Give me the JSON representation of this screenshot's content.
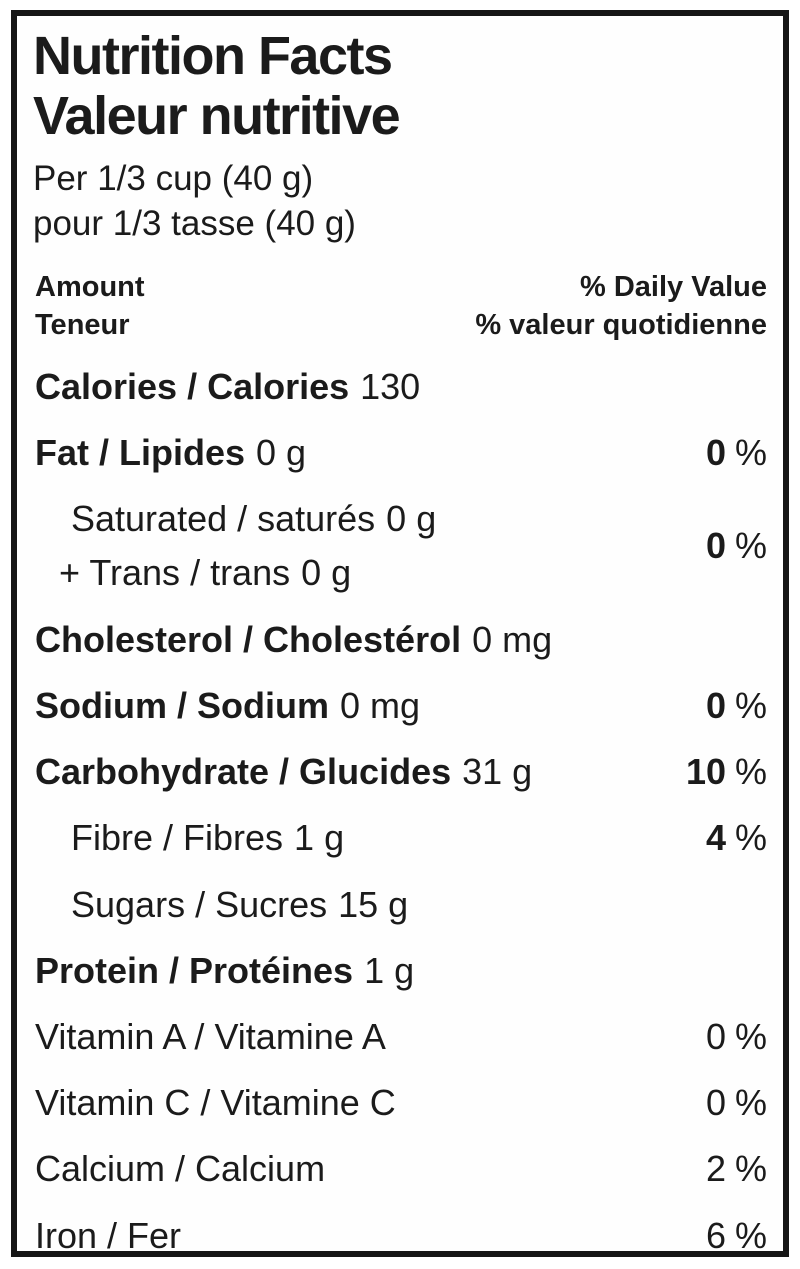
{
  "percent_sign": "%",
  "label": {
    "title_en": "Nutrition Facts",
    "title_fr": "Valeur nutritive",
    "serving_en": "Per 1/3 cup (40 g)",
    "serving_fr": "pour 1/3 tasse (40 g)"
  },
  "header": {
    "amount_en": "Amount",
    "amount_fr": "Teneur",
    "daily_value_en": "% Daily Value",
    "daily_value_fr": "% valeur quotidienne"
  },
  "rows": {
    "calories": {
      "label": "Calories / Calories",
      "value": "130"
    },
    "fat": {
      "label": "Fat / Lipides",
      "value": "0 g",
      "dv": "0"
    },
    "saturated_trans": {
      "label1": "Saturated / saturés",
      "value1": "0 g",
      "label2": "+ Trans / trans",
      "value2": "0 g",
      "dv": "0"
    },
    "cholesterol": {
      "label": "Cholesterol / Cholestérol",
      "value": "0 mg"
    },
    "sodium": {
      "label": "Sodium / Sodium",
      "value": "0 mg",
      "dv": "0"
    },
    "carbohydrate": {
      "label": "Carbohydrate / Glucides",
      "value": "31 g",
      "dv": "10"
    },
    "fibre": {
      "label": "Fibre / Fibres",
      "value": "1 g",
      "dv": "4"
    },
    "sugars": {
      "label": "Sugars / Sucres",
      "value": "15 g"
    },
    "protein": {
      "label": "Protein / Protéines",
      "value": "1 g"
    },
    "vitamin_a": {
      "label": "Vitamin A / Vitamine A",
      "dv": "0"
    },
    "vitamin_c": {
      "label": "Vitamin C / Vitamine C",
      "dv": "0"
    },
    "calcium": {
      "label": "Calcium / Calcium",
      "dv": "2"
    },
    "iron": {
      "label": "Iron / Fer",
      "dv": "6"
    }
  },
  "colors": {
    "ink": "#161616",
    "background": "#ffffff"
  }
}
